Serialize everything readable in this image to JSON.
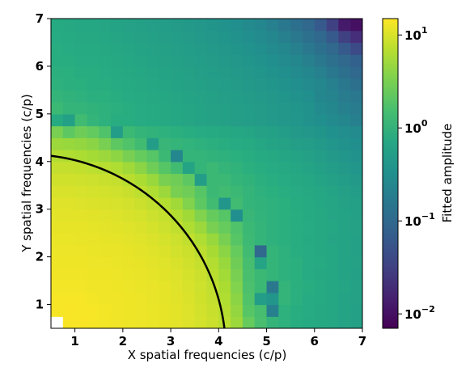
{
  "chart_data": {
    "type": "heatmap",
    "title": "",
    "xlabel": "X spatial frequencies (c/p)",
    "ylabel": "Y spatial frequencies (c/p)",
    "colorbar_label": "Fitted amplitude",
    "colormap": "viridis",
    "color_scale": "log",
    "color_range": [
      0.007,
      15
    ],
    "colorbar_ticks": [
      {
        "base": "10",
        "exp": "1",
        "value": 10
      },
      {
        "base": "10",
        "exp": "0",
        "value": 1
      },
      {
        "base": "10",
        "exp": "−1",
        "value": 0.1
      },
      {
        "base": "10",
        "exp": "−2",
        "value": 0.01
      }
    ],
    "xlim": [
      0.5,
      7.0
    ],
    "ylim": [
      0.5,
      7.0
    ],
    "xticks": [
      "1",
      "2",
      "3",
      "4",
      "5",
      "6",
      "7"
    ],
    "yticks": [
      "1",
      "2",
      "3",
      "4",
      "5",
      "6",
      "7"
    ],
    "grid": false,
    "bin_width": 0.25,
    "x_bin_centers": [
      0.625,
      0.875,
      1.125,
      1.375,
      1.625,
      1.875,
      2.125,
      2.375,
      2.625,
      2.875,
      3.125,
      3.375,
      3.625,
      3.875,
      4.125,
      4.375,
      4.625,
      4.875,
      5.125,
      5.375,
      5.625,
      5.875,
      6.125,
      6.375,
      6.625,
      6.875
    ],
    "y_bin_centers": [
      0.625,
      0.875,
      1.125,
      1.375,
      1.625,
      1.875,
      2.125,
      2.375,
      2.625,
      2.875,
      3.125,
      3.375,
      3.625,
      3.875,
      4.125,
      4.375,
      4.625,
      4.875,
      5.125,
      5.375,
      5.625,
      5.875,
      6.125,
      6.375,
      6.625,
      6.875
    ],
    "values_log10_note": "rows ordered from y=0.625 (bottom) to y=6.875 (top); values are log10(amplitude); null = missing bin",
    "values_log10": [
      [
        null,
        1.15,
        1.15,
        1.14,
        1.13,
        1.12,
        1.11,
        1.1,
        1.09,
        1.07,
        1.05,
        1.02,
        0.98,
        0.93,
        0.85,
        0.7,
        0.4,
        0.2,
        0.05,
        0.0,
        -0.05,
        -0.1,
        -0.12,
        -0.15,
        -0.2,
        -0.25
      ],
      [
        1.14,
        1.15,
        1.14,
        1.14,
        1.13,
        1.12,
        1.11,
        1.1,
        1.09,
        1.07,
        1.05,
        1.02,
        0.97,
        0.92,
        0.83,
        0.65,
        0.3,
        0.18,
        -0.7,
        0.0,
        -0.05,
        -0.08,
        -0.12,
        -0.15,
        -0.2,
        -0.25
      ],
      [
        1.14,
        1.14,
        1.14,
        1.13,
        1.12,
        1.12,
        1.11,
        1.1,
        1.08,
        1.06,
        1.04,
        1.01,
        0.96,
        0.9,
        0.8,
        0.6,
        0.25,
        -0.3,
        -0.4,
        0.05,
        -0.02,
        -0.08,
        -0.1,
        -0.15,
        -0.2,
        -0.22
      ],
      [
        1.13,
        1.13,
        1.13,
        1.12,
        1.12,
        1.11,
        1.1,
        1.09,
        1.08,
        1.06,
        1.03,
        1.0,
        0.95,
        0.88,
        0.78,
        0.55,
        0.22,
        0.1,
        -0.8,
        0.05,
        -0.02,
        -0.05,
        -0.1,
        -0.15,
        -0.18,
        -0.22
      ],
      [
        1.12,
        1.12,
        1.12,
        1.11,
        1.11,
        1.1,
        1.09,
        1.08,
        1.06,
        1.04,
        1.02,
        0.98,
        0.93,
        0.85,
        0.73,
        0.5,
        0.2,
        0.1,
        0.05,
        0.0,
        -0.03,
        -0.08,
        -0.12,
        -0.15,
        -0.2,
        -0.25
      ],
      [
        1.11,
        1.11,
        1.11,
        1.1,
        1.1,
        1.09,
        1.08,
        1.07,
        1.05,
        1.03,
        1.0,
        0.96,
        0.9,
        0.82,
        0.68,
        0.45,
        0.18,
        -0.2,
        0.05,
        0.0,
        -0.03,
        -0.08,
        -0.1,
        -0.15,
        -0.2,
        -0.22
      ],
      [
        1.1,
        1.1,
        1.1,
        1.09,
        1.08,
        1.08,
        1.07,
        1.05,
        1.03,
        1.01,
        0.97,
        0.93,
        0.86,
        0.76,
        0.6,
        0.4,
        0.15,
        -1.0,
        0.05,
        0.0,
        -0.05,
        -0.08,
        -0.12,
        -0.15,
        -0.2,
        -0.25
      ],
      [
        1.09,
        1.09,
        1.08,
        1.08,
        1.07,
        1.06,
        1.05,
        1.03,
        1.01,
        0.98,
        0.94,
        0.88,
        0.8,
        0.68,
        0.5,
        0.3,
        0.12,
        0.05,
        0.0,
        -0.02,
        -0.05,
        -0.1,
        -0.12,
        -0.18,
        -0.2,
        -0.25
      ],
      [
        1.07,
        1.07,
        1.07,
        1.06,
        1.05,
        1.04,
        1.03,
        1.01,
        0.98,
        0.94,
        0.88,
        0.8,
        0.7,
        0.5,
        0.4,
        0.25,
        0.1,
        0.05,
        0.0,
        -0.02,
        -0.05,
        -0.08,
        -0.12,
        -0.15,
        -0.2,
        -0.22
      ],
      [
        1.05,
        1.05,
        1.05,
        1.04,
        1.03,
        1.02,
        1.0,
        0.98,
        0.94,
        0.9,
        0.82,
        0.72,
        0.55,
        0.4,
        0.3,
        -0.5,
        0.08,
        0.03,
        0.0,
        -0.03,
        -0.05,
        -0.1,
        -0.12,
        -0.18,
        -0.2,
        -0.25
      ],
      [
        1.03,
        1.03,
        1.02,
        1.01,
        1.0,
        0.99,
        0.97,
        0.93,
        0.88,
        0.82,
        0.72,
        0.55,
        0.35,
        0.15,
        -0.4,
        0.15,
        0.05,
        0.02,
        0.0,
        -0.03,
        -0.07,
        -0.1,
        -0.15,
        -0.18,
        -0.22,
        -0.25
      ],
      [
        1.0,
        1.0,
        0.99,
        0.98,
        0.97,
        0.95,
        0.92,
        0.87,
        0.8,
        0.7,
        0.5,
        0.45,
        0.3,
        0.1,
        0.15,
        0.1,
        0.05,
        0.0,
        -0.03,
        -0.05,
        -0.08,
        -0.12,
        -0.15,
        -0.2,
        -0.25,
        -0.3
      ],
      [
        0.96,
        0.96,
        0.95,
        0.94,
        0.92,
        0.9,
        0.85,
        0.78,
        0.68,
        0.5,
        0.45,
        0.35,
        -0.3,
        0.1,
        0.1,
        0.05,
        0.02,
        -0.02,
        -0.05,
        -0.08,
        -0.12,
        -0.15,
        -0.2,
        -0.25,
        -0.3,
        -0.35
      ],
      [
        0.9,
        0.9,
        0.89,
        0.87,
        0.84,
        0.8,
        0.72,
        0.6,
        0.45,
        0.3,
        0.15,
        -0.2,
        0.05,
        0.1,
        0.05,
        0.02,
        -0.02,
        -0.05,
        -0.08,
        -0.12,
        -0.15,
        -0.2,
        -0.25,
        -0.3,
        -0.35,
        -0.4
      ],
      [
        0.82,
        0.8,
        0.78,
        0.75,
        0.7,
        0.62,
        0.5,
        0.4,
        0.3,
        0.1,
        -0.6,
        0.05,
        0.05,
        0.02,
        0.0,
        -0.03,
        -0.05,
        -0.1,
        -0.12,
        -0.18,
        -0.2,
        -0.25,
        -0.3,
        -0.35,
        -0.4,
        -0.45
      ],
      [
        0.7,
        0.68,
        0.65,
        0.6,
        0.5,
        0.35,
        0.25,
        0.15,
        -0.3,
        0.08,
        0.05,
        0.03,
        0.0,
        -0.02,
        -0.05,
        -0.08,
        -0.1,
        -0.15,
        -0.2,
        -0.22,
        -0.28,
        -0.3,
        -0.35,
        -0.4,
        -0.45,
        -0.5
      ],
      [
        0.5,
        0.35,
        0.45,
        0.38,
        0.25,
        -0.3,
        0.1,
        0.05,
        0.02,
        0.0,
        -0.02,
        -0.05,
        -0.08,
        -0.1,
        -0.12,
        -0.15,
        -0.18,
        -0.22,
        -0.25,
        -0.3,
        -0.35,
        -0.38,
        -0.42,
        -0.48,
        -0.52,
        -0.55
      ],
      [
        -0.1,
        -0.25,
        0.15,
        0.05,
        0.0,
        -0.05,
        -0.05,
        -0.08,
        -0.1,
        -0.12,
        -0.15,
        -0.18,
        -0.2,
        -0.22,
        -0.25,
        -0.28,
        -0.3,
        -0.32,
        -0.35,
        -0.38,
        -0.4,
        -0.45,
        -0.5,
        -0.55,
        -0.6,
        -0.7
      ],
      [
        0.1,
        0.05,
        0.05,
        0.02,
        0.0,
        -0.02,
        -0.05,
        -0.08,
        -0.1,
        -0.12,
        -0.15,
        -0.18,
        -0.2,
        -0.22,
        -0.25,
        -0.28,
        -0.3,
        -0.32,
        -0.35,
        -0.38,
        -0.42,
        -0.45,
        -0.55,
        -0.6,
        -0.7,
        -0.75
      ],
      [
        0.05,
        0.02,
        0.0,
        -0.02,
        -0.03,
        -0.05,
        -0.08,
        -0.1,
        -0.12,
        -0.15,
        -0.18,
        -0.2,
        -0.22,
        -0.25,
        -0.28,
        -0.3,
        -0.32,
        -0.35,
        -0.38,
        -0.42,
        -0.45,
        -0.5,
        -0.6,
        -0.65,
        -0.75,
        -0.8
      ],
      [
        0.0,
        -0.02,
        -0.03,
        -0.05,
        -0.05,
        -0.08,
        -0.1,
        -0.12,
        -0.15,
        -0.18,
        -0.2,
        -0.22,
        -0.25,
        -0.28,
        -0.3,
        -0.32,
        -0.35,
        -0.38,
        -0.42,
        -0.45,
        -0.5,
        -0.55,
        -0.6,
        -0.7,
        -0.8,
        -0.9
      ],
      [
        -0.02,
        -0.03,
        -0.05,
        -0.05,
        -0.08,
        -0.1,
        -0.12,
        -0.15,
        -0.18,
        -0.2,
        -0.22,
        -0.25,
        -0.28,
        -0.3,
        -0.32,
        -0.35,
        -0.38,
        -0.42,
        -0.45,
        -0.5,
        -0.55,
        -0.6,
        -0.7,
        -0.8,
        -0.9,
        -1.0
      ],
      [
        -0.05,
        -0.05,
        -0.08,
        -0.08,
        -0.1,
        -0.12,
        -0.15,
        -0.18,
        -0.2,
        -0.22,
        -0.25,
        -0.28,
        -0.3,
        -0.32,
        -0.35,
        -0.38,
        -0.42,
        -0.45,
        -0.5,
        -0.55,
        -0.6,
        -0.7,
        -0.8,
        -0.9,
        -1.0,
        -1.1
      ],
      [
        -0.05,
        -0.08,
        -0.1,
        -0.1,
        -0.12,
        -0.15,
        -0.18,
        -0.2,
        -0.22,
        -0.25,
        -0.28,
        -0.3,
        -0.32,
        -0.35,
        -0.38,
        -0.42,
        -0.45,
        -0.5,
        -0.55,
        -0.6,
        -0.7,
        -0.8,
        -0.9,
        -1.0,
        -1.2,
        -1.4
      ],
      [
        -0.08,
        -0.1,
        -0.12,
        -0.12,
        -0.15,
        -0.18,
        -0.2,
        -0.22,
        -0.25,
        -0.28,
        -0.3,
        -0.32,
        -0.35,
        -0.38,
        -0.42,
        -0.45,
        -0.5,
        -0.55,
        -0.6,
        -0.7,
        -0.8,
        -0.9,
        -1.0,
        -1.2,
        -1.5,
        -1.7
      ],
      [
        -0.1,
        -0.12,
        -0.15,
        -0.15,
        -0.18,
        -0.2,
        -0.22,
        -0.25,
        -0.28,
        -0.3,
        -0.32,
        -0.35,
        -0.38,
        -0.42,
        -0.45,
        -0.5,
        -0.55,
        -0.6,
        -0.7,
        -0.8,
        -0.9,
        -1.0,
        -1.2,
        -1.5,
        -1.9,
        -2.0
      ]
    ],
    "overlay_arc": {
      "center": [
        0,
        0
      ],
      "radius": 4.15
    }
  }
}
